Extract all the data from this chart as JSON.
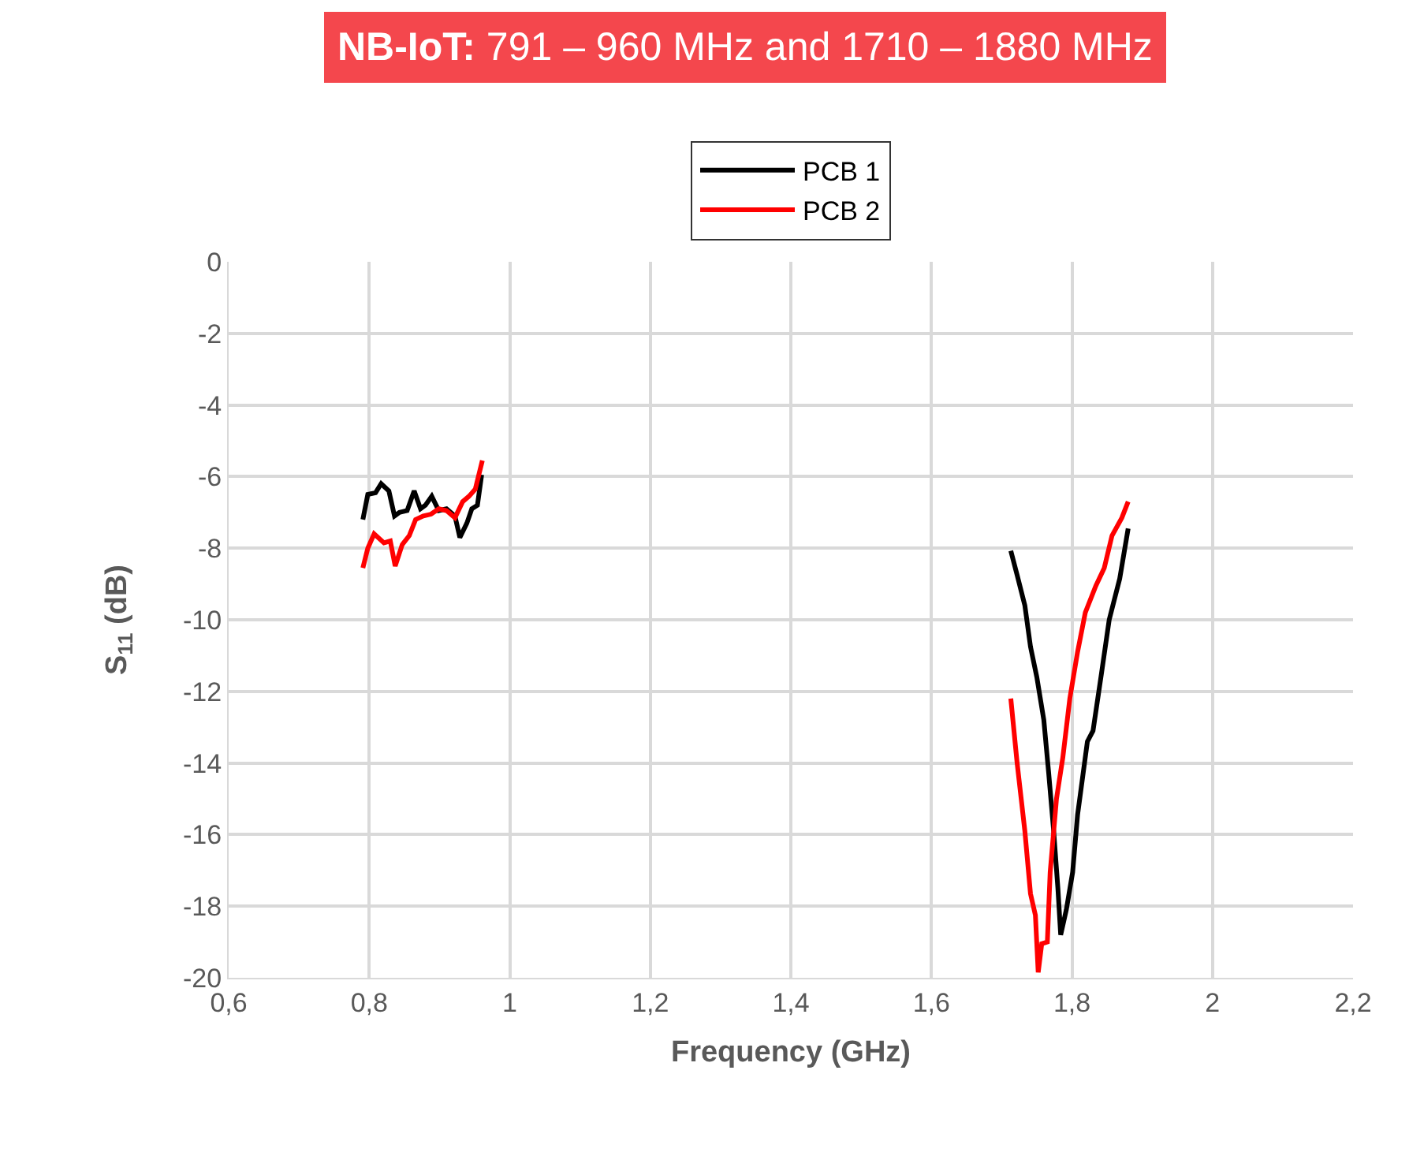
{
  "chart_data": {
    "type": "line",
    "title": "NB-IoT: 791 – 960 MHz and 1710 – 1880 MHz",
    "xlabel": "Frequency (GHz)",
    "ylabel": "S$_{11}$ (dB)",
    "xlim": [
      0.6,
      2.2
    ],
    "xticks": [
      {
        "value": 0.6,
        "label": "0,6"
      },
      {
        "value": 0.8,
        "label": "0,8"
      },
      1,
      {
        "value": 1.2,
        "label": "1,2"
      },
      {
        "value": 1.4,
        "label": "1,4"
      },
      {
        "value": 1.6,
        "label": "1,6"
      },
      {
        "value": 1.8,
        "label": "1,8"
      },
      2,
      {
        "value": 2.2,
        "label": "2,2"
      }
    ],
    "ylim": [
      -20,
      0
    ],
    "yticks": [
      -20,
      -18,
      -16,
      -14,
      -12,
      -10,
      -8,
      -6,
      -4,
      -2,
      0
    ],
    "grid": true,
    "legend": "top",
    "marker": "none",
    "line_style": "solid",
    "series": [
      {
        "name": "PCB 1",
        "color": "#000000",
        "x": [
          0.791,
          0.798,
          0.809,
          0.817,
          0.828,
          0.836,
          0.843,
          0.854,
          0.864,
          0.873,
          0.88,
          0.889,
          0.899,
          0.91,
          0.922,
          0.929,
          0.939,
          0.946,
          0.954,
          0.96,
          1.3,
          1.713,
          1.722,
          1.733,
          1.741,
          1.75,
          1.76,
          1.767,
          1.774,
          1.78,
          1.784,
          1.792,
          1.801,
          1.808,
          1.822,
          1.83,
          1.842,
          1.853,
          1.868,
          1.88
        ],
        "values": [
          -7.2,
          -6.5,
          -6.45,
          -6.2,
          -6.4,
          -7.1,
          -7.0,
          -6.95,
          -6.4,
          -6.9,
          -6.8,
          -6.55,
          -6.95,
          -6.9,
          -7.1,
          -7.7,
          -7.3,
          -6.9,
          -6.8,
          -5.95,
          null,
          -8.07,
          -8.75,
          -9.6,
          -10.75,
          -11.6,
          -12.8,
          -14.3,
          -15.9,
          -17.5,
          -18.8,
          -18.1,
          -17.05,
          -15.45,
          -13.4,
          -13.1,
          -11.5,
          -10.0,
          -8.85,
          -7.45
        ]
      },
      {
        "name": "PCB 2",
        "color": "#ff0000",
        "x": [
          0.791,
          0.798,
          0.807,
          0.821,
          0.83,
          0.837,
          0.847,
          0.857,
          0.866,
          0.877,
          0.888,
          0.899,
          0.91,
          0.922,
          0.933,
          0.942,
          0.951,
          0.961,
          1.3,
          1.713,
          1.722,
          1.733,
          1.741,
          1.748,
          1.752,
          1.757,
          1.765,
          1.769,
          1.778,
          1.787,
          1.797,
          1.808,
          1.819,
          1.834,
          1.846,
          1.857,
          1.871,
          1.88
        ],
        "values": [
          -8.55,
          -8.0,
          -7.6,
          -7.85,
          -7.8,
          -8.5,
          -7.9,
          -7.65,
          -7.2,
          -7.1,
          -7.05,
          -6.9,
          -6.95,
          -7.15,
          -6.7,
          -6.55,
          -6.35,
          -5.55,
          null,
          -12.2,
          -14.0,
          -15.9,
          -17.65,
          -18.25,
          -19.85,
          -19.05,
          -19.0,
          -17.05,
          -15.0,
          -13.85,
          -12.2,
          -10.9,
          -9.8,
          -9.05,
          -8.55,
          -7.65,
          -7.15,
          -6.7
        ]
      }
    ]
  }
}
